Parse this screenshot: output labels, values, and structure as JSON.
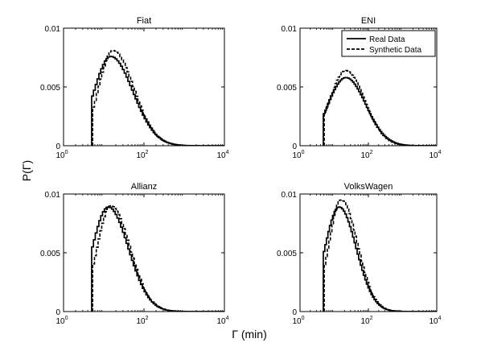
{
  "figure": {
    "ylabel": "P(Γ)",
    "xlabel": "Γ (min)"
  },
  "legend": {
    "items": [
      {
        "label": "Real Data",
        "style": "solid"
      },
      {
        "label": "Synthetic Data",
        "style": "dashed"
      }
    ],
    "location": "top-right",
    "panel": 1
  },
  "chart_data": [
    {
      "type": "line",
      "title": "Fiat",
      "xscale": "log",
      "xlim": [
        1,
        10000
      ],
      "ylim": [
        0,
        0.01
      ],
      "xticks": [
        {
          "base": "10",
          "exp": "0"
        },
        {
          "base": "10",
          "exp": "2"
        },
        {
          "base": "10",
          "exp": "4"
        }
      ],
      "yticks": [
        "0",
        "0.005",
        "0.01"
      ],
      "series": [
        {
          "name": "Real Data",
          "style": "solid",
          "x_min": 5,
          "peak_x": 15,
          "peak": 0.0076,
          "initial": 0.0035,
          "left_width": 0.42,
          "right_width": 0.55
        },
        {
          "name": "Synthetic Data",
          "style": "dashed",
          "x_min": 5.3,
          "peak_x": 17,
          "peak": 0.0081,
          "initial": 0.0025,
          "left_width": 0.36,
          "right_width": 0.52
        }
      ]
    },
    {
      "type": "line",
      "title": "ENI",
      "xscale": "log",
      "xlim": [
        1,
        10000
      ],
      "ylim": [
        0,
        0.01
      ],
      "xticks": [
        {
          "base": "10",
          "exp": "0"
        },
        {
          "base": "10",
          "exp": "2"
        },
        {
          "base": "10",
          "exp": "4"
        }
      ],
      "yticks": [
        "0",
        "0.005",
        "0.01"
      ],
      "series": [
        {
          "name": "Real Data",
          "style": "solid",
          "x_min": 4.8,
          "peak_x": 22,
          "peak": 0.0058,
          "initial": 0.0012,
          "left_width": 0.52,
          "right_width": 0.58
        },
        {
          "name": "Synthetic Data",
          "style": "dashed",
          "x_min": 5.1,
          "peak_x": 22,
          "peak": 0.0064,
          "initial": 0.0009,
          "left_width": 0.48,
          "right_width": 0.55
        }
      ]
    },
    {
      "type": "line",
      "title": "Allianz",
      "xscale": "log",
      "xlim": [
        1,
        10000
      ],
      "ylim": [
        0,
        0.01
      ],
      "xticks": [
        {
          "base": "10",
          "exp": "0"
        },
        {
          "base": "10",
          "exp": "2"
        },
        {
          "base": "10",
          "exp": "4"
        }
      ],
      "yticks": [
        "0",
        "0.005",
        "0.01"
      ],
      "series": [
        {
          "name": "Real Data",
          "style": "solid",
          "x_min": 5,
          "peak_x": 13,
          "peak": 0.0089,
          "initial": 0.0043,
          "left_width": 0.4,
          "right_width": 0.5
        },
        {
          "name": "Synthetic Data",
          "style": "dashed",
          "x_min": 5.3,
          "peak_x": 15,
          "peak": 0.009,
          "initial": 0.0032,
          "left_width": 0.34,
          "right_width": 0.48
        }
      ]
    },
    {
      "type": "line",
      "title": "VolksWagen",
      "xscale": "log",
      "xlim": [
        1,
        10000
      ],
      "ylim": [
        0,
        0.01
      ],
      "xticks": [
        {
          "base": "10",
          "exp": "0"
        },
        {
          "base": "10",
          "exp": "2"
        },
        {
          "base": "10",
          "exp": "4"
        }
      ],
      "yticks": [
        "0",
        "0.005",
        "0.01"
      ],
      "series": [
        {
          "name": "Real Data",
          "style": "solid",
          "x_min": 4.8,
          "peak_x": 14,
          "peak": 0.0089,
          "initial": 0.0043,
          "left_width": 0.42,
          "right_width": 0.5
        },
        {
          "name": "Synthetic Data",
          "style": "dashed",
          "x_min": 5.1,
          "peak_x": 16,
          "peak": 0.0095,
          "initial": 0.0033,
          "left_width": 0.36,
          "right_width": 0.48
        }
      ]
    }
  ]
}
